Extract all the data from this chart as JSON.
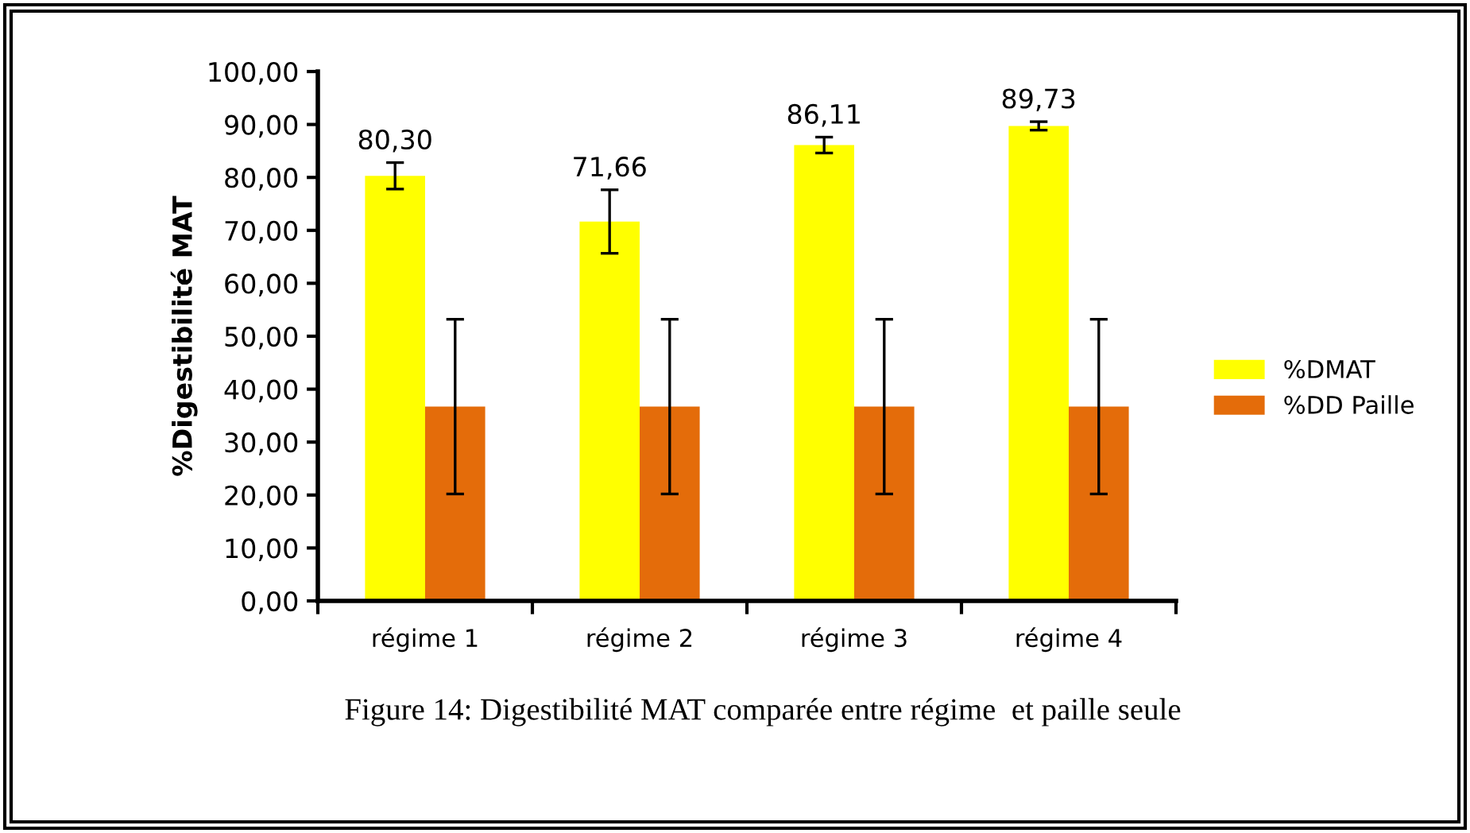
{
  "chart_data": {
    "type": "bar",
    "ylabel": "%Digestibilité MAT",
    "categories": [
      "régime 1",
      "régime 2",
      "régime 3",
      "régime 4"
    ],
    "series": [
      {
        "name": "%DMAT",
        "color": "#ffff00",
        "values": [
          80.3,
          71.66,
          86.11,
          89.73
        ],
        "errors": [
          2.5,
          6,
          1.5,
          0.8
        ],
        "value_labels": [
          "80,30",
          "71,66",
          "86,11",
          "89,73"
        ]
      },
      {
        "name": "%DD Paille",
        "color": "#e46c0a",
        "values": [
          36.7,
          36.7,
          36.7,
          36.7
        ],
        "errors": [
          16.5,
          16.5,
          16.5,
          16.5
        ]
      }
    ],
    "ylim": [
      0,
      100
    ],
    "yticks": [
      {
        "value": 0,
        "label": "0,00"
      },
      {
        "value": 10,
        "label": "10,00"
      },
      {
        "value": 20,
        "label": "20,00"
      },
      {
        "value": 30,
        "label": "30,00"
      },
      {
        "value": 40,
        "label": "40,00"
      },
      {
        "value": 50,
        "label": "50,00"
      },
      {
        "value": 60,
        "label": "60,00"
      },
      {
        "value": 70,
        "label": "70,00"
      },
      {
        "value": 80,
        "label": "80,00"
      },
      {
        "value": 90,
        "label": "90,00"
      },
      {
        "value": 100,
        "label": "100,00"
      }
    ],
    "grid": false,
    "legend": "right",
    "annotations": [
      "Figure 14: Digestibilité MAT comparée entre régime  et paille seule"
    ]
  }
}
